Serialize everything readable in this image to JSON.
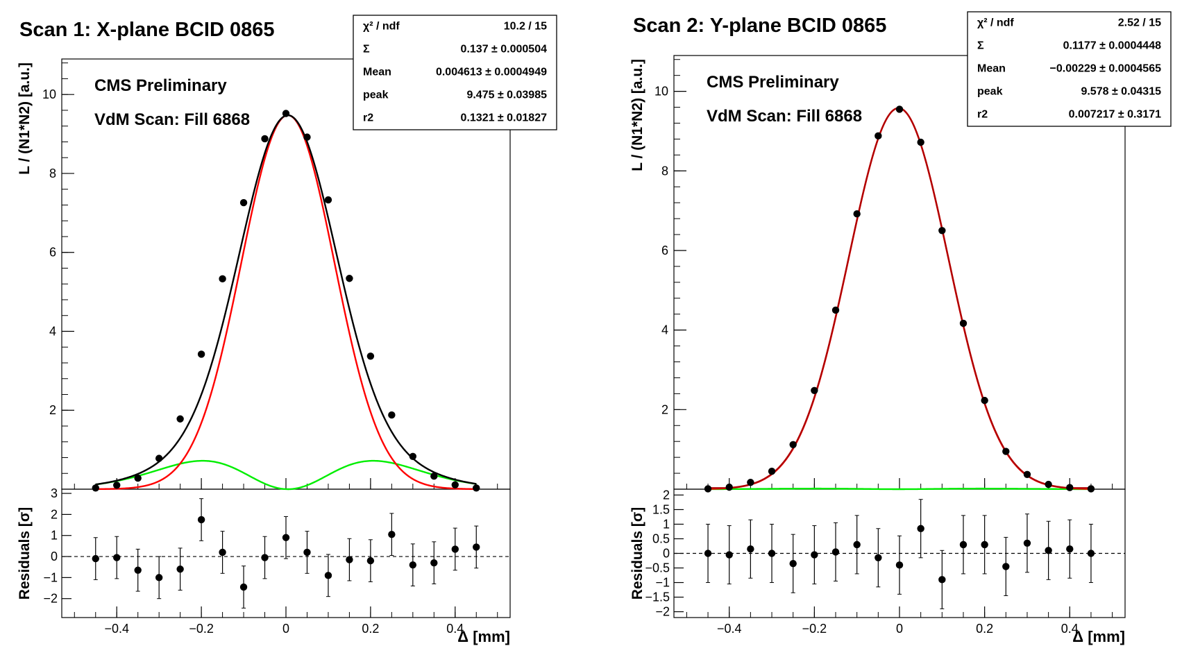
{
  "chart_data": [
    {
      "type": "scatter",
      "title": "Scan 1: X-plane BCID 0865",
      "annotations": [
        "CMS Preliminary",
        "VdM Scan: Fill 6868"
      ],
      "xlabel": "Δ [mm]",
      "ylabel": "L / (N1*N2) [a.u.]",
      "xlim": [
        -0.53,
        0.53
      ],
      "ylim": [
        0,
        10.9
      ],
      "xticks": [
        "−0.4",
        "−0.2",
        "0",
        "0.2",
        "0.4"
      ],
      "xtick_values": [
        -0.4,
        -0.2,
        0,
        0.2,
        0.4
      ],
      "yticks": [
        "2",
        "4",
        "6",
        "8",
        "10"
      ],
      "ytick_values": [
        2,
        4,
        6,
        8,
        10
      ],
      "stats": {
        "rows": [
          {
            "label": "χ² / ndf",
            "value": "10.2 / 15"
          },
          {
            "label": "Σ",
            "value": "0.137 ± 0.000504"
          },
          {
            "label": "Mean",
            "value": "0.004613 ± 0.0004949"
          },
          {
            "label": "peak",
            "value": "9.475 ± 0.03985"
          },
          {
            "label": "r2",
            "value": "0.1321 ± 0.01827"
          }
        ]
      },
      "fit": {
        "total_color": "#000000",
        "component_color": "#ff0000",
        "secondary_color": "#00ee00",
        "mean": 0.004613,
        "peak": 9.475,
        "sigma1": 0.11,
        "sigma2": 0.195,
        "fraction2": 0.19
      },
      "x": [
        -0.45,
        -0.4,
        -0.35,
        -0.3,
        -0.25,
        -0.2,
        -0.15,
        -0.1,
        -0.05,
        0,
        0.05,
        0.1,
        0.15,
        0.2,
        0.25,
        0.3,
        0.35,
        0.4,
        0.45
      ],
      "y": [
        0.03,
        0.1,
        0.28,
        0.78,
        1.78,
        3.42,
        5.33,
        7.26,
        8.88,
        9.52,
        8.92,
        7.33,
        5.34,
        3.37,
        1.88,
        0.83,
        0.33,
        0.11,
        0.03
      ],
      "residuals": {
        "ylabel": "Residuals [σ]",
        "ylim": [
          -2.9,
          3.2
        ],
        "yticks": [
          "−2",
          "−1",
          "0",
          "1",
          "2",
          "3"
        ],
        "ytick_values": [
          -2,
          -1,
          0,
          1,
          2,
          3
        ],
        "values": [
          -0.1,
          -0.05,
          -0.65,
          -1.0,
          -0.6,
          1.75,
          0.2,
          -1.45,
          -0.05,
          0.9,
          0.2,
          -0.9,
          -0.15,
          -0.2,
          1.05,
          -0.4,
          -0.3,
          0.35,
          0.45
        ],
        "errors": [
          1,
          1,
          1,
          1,
          1,
          1,
          1,
          1,
          1,
          1,
          1,
          1,
          1,
          1,
          1,
          1,
          1,
          1,
          1
        ]
      }
    },
    {
      "type": "scatter",
      "title": "Scan 2: Y-plane BCID 0865",
      "annotations": [
        "CMS Preliminary",
        "VdM Scan: Fill 6868"
      ],
      "xlabel": "Δ [mm]",
      "ylabel": "L / (N1*N2) [a.u.]",
      "xlim": [
        -0.53,
        0.53
      ],
      "ylim": [
        0,
        10.9
      ],
      "xticks": [
        "−0.4",
        "−0.2",
        "0",
        "0.2",
        "0.4"
      ],
      "xtick_values": [
        -0.4,
        -0.2,
        0,
        0.2,
        0.4
      ],
      "yticks": [
        "2",
        "4",
        "6",
        "8",
        "10"
      ],
      "ytick_values": [
        2,
        4,
        6,
        8,
        10
      ],
      "stats": {
        "rows": [
          {
            "label": "χ² / ndf",
            "value": "2.52 / 15"
          },
          {
            "label": "Σ",
            "value": "0.1177 ± 0.0004448"
          },
          {
            "label": "Mean",
            "value": "−0.00229 ± 0.0004565"
          },
          {
            "label": "peak",
            "value": "9.578 ± 0.04315"
          },
          {
            "label": "r2",
            "value": "0.007217 ± 0.3171"
          }
        ]
      },
      "fit": {
        "total_color": "#000000",
        "component_color": "#ff0000",
        "secondary_color": "#00ee00",
        "mean": -0.00229,
        "peak": 9.578,
        "sigma1": 0.117,
        "sigma2": 0.16,
        "fraction2": 0.007
      },
      "x": [
        -0.45,
        -0.4,
        -0.35,
        -0.3,
        -0.25,
        -0.2,
        -0.15,
        -0.1,
        -0.05,
        0,
        0.05,
        0.1,
        0.15,
        0.2,
        0.25,
        0.3,
        0.35,
        0.4,
        0.45
      ],
      "y": [
        0.01,
        0.05,
        0.17,
        0.45,
        1.12,
        2.48,
        4.5,
        6.92,
        8.88,
        9.55,
        8.72,
        6.5,
        4.17,
        2.23,
        0.95,
        0.37,
        0.12,
        0.04,
        0.01
      ],
      "residuals": {
        "ylabel": "Residuals [σ]",
        "ylim": [
          -2.2,
          2.2
        ],
        "yticks": [
          "−2",
          "−1.5",
          "−1",
          "−0.5",
          "0",
          "0.5",
          "1",
          "1.5",
          "2"
        ],
        "ytick_values": [
          -2,
          -1.5,
          -1,
          -0.5,
          0,
          0.5,
          1,
          1.5,
          2
        ],
        "values": [
          0.0,
          -0.05,
          0.15,
          0.0,
          -0.35,
          -0.05,
          0.05,
          0.3,
          -0.15,
          -0.4,
          0.85,
          -0.9,
          0.3,
          0.3,
          -0.45,
          0.35,
          0.1,
          0.15,
          0.0
        ],
        "errors": [
          1,
          1,
          1,
          1,
          1,
          1,
          1,
          1,
          1,
          1,
          1,
          1,
          1,
          1,
          1,
          1,
          1,
          1,
          1
        ]
      }
    }
  ]
}
